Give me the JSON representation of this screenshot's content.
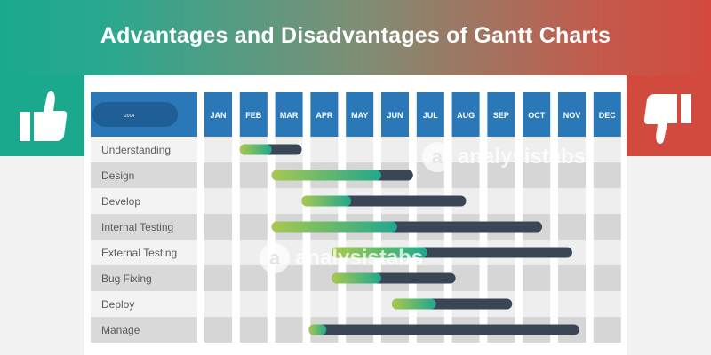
{
  "banner": {
    "title": "Advantages and Disadvantages of Gantt Charts",
    "left_icon": "thumbs-up-icon",
    "right_icon": "thumbs-down-icon"
  },
  "watermark": {
    "text": "analysistabs"
  },
  "colors": {
    "header_blue": "#2a78b8",
    "bar_dark": "#3a4655",
    "bar_light_green": "#a9c84f",
    "bar_teal": "#1fa88c",
    "row_gray": "#d8d8d8",
    "row_light": "#f0f0f0"
  },
  "chart_data": {
    "type": "gantt",
    "year_label": "2014",
    "months": [
      "JAN",
      "FEB",
      "MAR",
      "APR",
      "MAY",
      "JUN",
      "JUL",
      "AUG",
      "SEP",
      "OCT",
      "NOV",
      "DEC"
    ],
    "tasks": [
      {
        "name": "Understanding",
        "start": 1.0,
        "progress_end": 1.9,
        "end": 2.75
      },
      {
        "name": "Design",
        "start": 1.9,
        "progress_end": 5.0,
        "end": 5.9
      },
      {
        "name": "Develop",
        "start": 2.75,
        "progress_end": 4.15,
        "end": 7.4
      },
      {
        "name": "Internal Testing",
        "start": 1.9,
        "progress_end": 5.45,
        "end": 9.55
      },
      {
        "name": "External Testing",
        "start": 3.6,
        "progress_end": 6.3,
        "end": 10.4
      },
      {
        "name": "Bug Fixing",
        "start": 3.6,
        "progress_end": 5.0,
        "end": 7.1
      },
      {
        "name": "Deploy",
        "start": 5.3,
        "progress_end": 6.55,
        "end": 8.7
      },
      {
        "name": "Manage",
        "start": 2.95,
        "progress_end": 3.45,
        "end": 10.6
      }
    ]
  }
}
